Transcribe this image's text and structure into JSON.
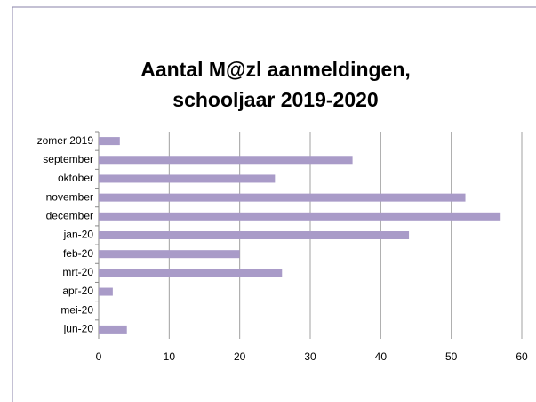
{
  "chart_data": {
    "type": "bar",
    "orientation": "horizontal",
    "title": [
      "Aantal M@zl aanmeldingen,",
      "schooljaar 2019-2020"
    ],
    "categories": [
      "zomer 2019",
      "september",
      "oktober",
      "november",
      "december",
      "jan-20",
      "feb-20",
      "mrt-20",
      "apr-20",
      "mei-20",
      "jun-20"
    ],
    "values": [
      3,
      36,
      25,
      52,
      57,
      44,
      20,
      26,
      2,
      0,
      4
    ],
    "color": "#a99bc8",
    "xlim": [
      0,
      60
    ],
    "xticks": [
      0,
      10,
      20,
      30,
      40,
      50,
      60
    ],
    "grid": true
  }
}
